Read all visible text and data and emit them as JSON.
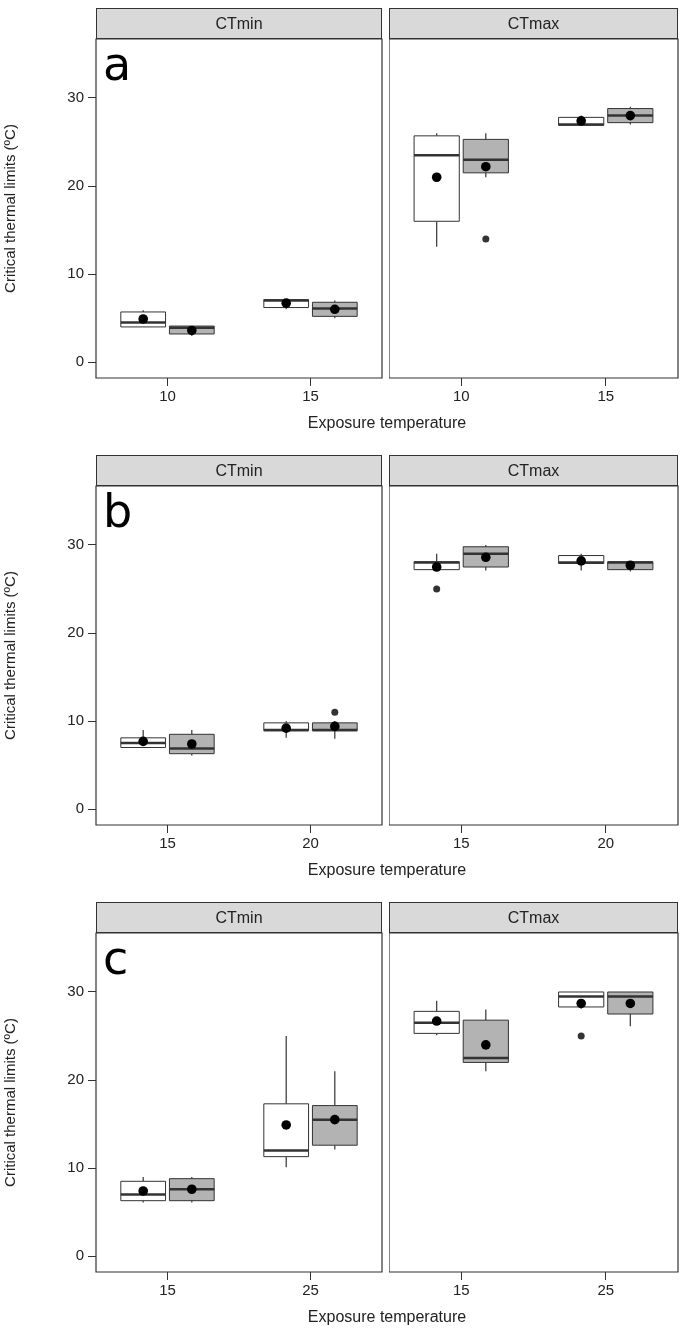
{
  "chart_data": [
    {
      "type": "box",
      "title": "CTmin",
      "categories": [
        "10",
        "15"
      ],
      "ylabel": "Critical thermal limits (ºC)",
      "xlabel": "Exposure temperature",
      "annotations": [
        "a"
      ],
      "ylim": [
        -1.8,
        36.7
      ],
      "yticks": [
        0,
        10,
        20,
        30
      ],
      "series": [
        {
          "color": "#ffffff",
          "boxes": [
            {
              "low": 4.0,
              "q1": 4.0,
              "median": 4.5,
              "q3": 5.7,
              "high": 5.9,
              "mean": 4.9
            },
            {
              "low": 6.0,
              "q1": 6.2,
              "median": 7.0,
              "q3": 7.1,
              "high": 7.1,
              "mean": 6.7
            }
          ]
        },
        {
          "color": "#b3b3b3",
          "boxes": [
            {
              "low": 3.0,
              "q1": 3.2,
              "median": 3.9,
              "q3": 4.1,
              "high": 4.1,
              "mean": 3.6
            },
            {
              "low": 5.0,
              "q1": 5.2,
              "median": 6.1,
              "q3": 6.8,
              "high": 7.0,
              "mean": 6.0
            }
          ]
        }
      ]
    },
    {
      "type": "box",
      "title": "CTmax",
      "categories": [
        "10",
        "15"
      ],
      "tick_labels": "x",
      "ylim": [
        -1.8,
        36.7
      ],
      "yticks": [
        0,
        10,
        20,
        30
      ],
      "series": [
        {
          "color": "#ffffff",
          "boxes": [
            {
              "low": 13.1,
              "q1": 16.0,
              "median": 23.5,
              "q3": 25.7,
              "high": 26.0,
              "mean": 21.0
            },
            {
              "low": 26.9,
              "q1": 26.9,
              "median": 27.0,
              "q3": 27.8,
              "high": 28.0,
              "mean": 27.4
            }
          ]
        },
        {
          "color": "#b3b3b3",
          "boxes": [
            {
              "low": 21.0,
              "q1": 21.5,
              "median": 23.0,
              "q3": 25.3,
              "high": 26.0,
              "mean": 22.2,
              "outliers": [
                14.0
              ]
            },
            {
              "low": 27.0,
              "q1": 27.2,
              "median": 28.0,
              "q3": 28.8,
              "high": 29.0,
              "mean": 28.0
            }
          ]
        }
      ]
    },
    {
      "type": "box",
      "title": "CTmin",
      "categories": [
        "15",
        "20"
      ],
      "ylabel": "Critical thermal limits (ºC)",
      "xlabel": "Exposure temperature",
      "annotations": [
        "b"
      ],
      "ylim": [
        -1.8,
        36.7
      ],
      "yticks": [
        0,
        10,
        20,
        30
      ],
      "series": [
        {
          "color": "#ffffff",
          "boxes": [
            {
              "low": 7.0,
              "q1": 7.0,
              "median": 7.5,
              "q3": 8.1,
              "high": 9.0,
              "mean": 7.7
            },
            {
              "low": 8.1,
              "q1": 8.9,
              "median": 9.0,
              "q3": 9.8,
              "high": 10.0,
              "mean": 9.2
            }
          ]
        },
        {
          "color": "#b3b3b3",
          "boxes": [
            {
              "low": 6.1,
              "q1": 6.3,
              "median": 6.9,
              "q3": 8.5,
              "high": 9.0,
              "mean": 7.4
            },
            {
              "low": 8.0,
              "q1": 8.9,
              "median": 9.0,
              "q3": 9.8,
              "high": 10.0,
              "mean": 9.4,
              "outliers": [
                11.0
              ]
            }
          ]
        }
      ]
    },
    {
      "type": "box",
      "title": "CTmax",
      "categories": [
        "15",
        "20"
      ],
      "tick_labels": "x",
      "ylim": [
        -1.8,
        36.7
      ],
      "yticks": [
        0,
        10,
        20,
        30
      ],
      "series": [
        {
          "color": "#ffffff",
          "boxes": [
            {
              "low": 27.2,
              "q1": 27.2,
              "median": 28.0,
              "q3": 28.1,
              "high": 29.0,
              "mean": 27.5,
              "outliers": [
                25.0
              ]
            },
            {
              "low": 27.1,
              "q1": 27.9,
              "median": 28.0,
              "q3": 28.8,
              "high": 29.0,
              "mean": 28.2
            }
          ]
        },
        {
          "color": "#b3b3b3",
          "boxes": [
            {
              "low": 27.1,
              "q1": 27.5,
              "median": 29.0,
              "q3": 29.8,
              "high": 30.0,
              "mean": 28.6
            },
            {
              "low": 27.0,
              "q1": 27.2,
              "median": 28.0,
              "q3": 28.1,
              "high": 28.1,
              "mean": 27.7
            }
          ]
        }
      ]
    },
    {
      "type": "box",
      "title": "CTmin",
      "categories": [
        "15",
        "25"
      ],
      "ylabel": "Critical thermal limits (ºC)",
      "xlabel": "Exposure temperature",
      "annotations": [
        "c"
      ],
      "ylim": [
        -1.8,
        36.7
      ],
      "yticks": [
        0,
        10,
        20,
        30
      ],
      "series": [
        {
          "color": "#ffffff",
          "boxes": [
            {
              "low": 6.1,
              "q1": 6.3,
              "median": 7.0,
              "q3": 8.5,
              "high": 9.0,
              "mean": 7.4
            },
            {
              "low": 10.1,
              "q1": 11.3,
              "median": 12.0,
              "q3": 17.3,
              "high": 25.0,
              "mean": 14.9
            }
          ]
        },
        {
          "color": "#b3b3b3",
          "boxes": [
            {
              "low": 6.1,
              "q1": 6.3,
              "median": 7.6,
              "q3": 8.8,
              "high": 9.0,
              "mean": 7.6
            },
            {
              "low": 12.1,
              "q1": 12.6,
              "median": 15.5,
              "q3": 17.1,
              "high": 21.0,
              "mean": 15.5
            }
          ]
        }
      ]
    },
    {
      "type": "box",
      "title": "CTmax",
      "categories": [
        "15",
        "25"
      ],
      "tick_labels": "x",
      "ylim": [
        -1.8,
        36.7
      ],
      "yticks": [
        0,
        10,
        20,
        30
      ],
      "series": [
        {
          "color": "#ffffff",
          "boxes": [
            {
              "low": 25.1,
              "q1": 25.3,
              "median": 26.5,
              "q3": 27.8,
              "high": 29.0,
              "mean": 26.7
            },
            {
              "low": 28.1,
              "q1": 28.3,
              "median": 29.5,
              "q3": 30.0,
              "high": 30.0,
              "mean": 28.7,
              "outliers": [
                25.0
              ]
            }
          ]
        },
        {
          "color": "#b3b3b3",
          "boxes": [
            {
              "low": 21.0,
              "q1": 22.0,
              "median": 22.5,
              "q3": 26.8,
              "high": 28.0,
              "mean": 24.0
            },
            {
              "low": 26.1,
              "q1": 27.5,
              "median": 29.5,
              "q3": 30.0,
              "high": 30.0,
              "mean": 28.7
            }
          ]
        }
      ]
    }
  ]
}
